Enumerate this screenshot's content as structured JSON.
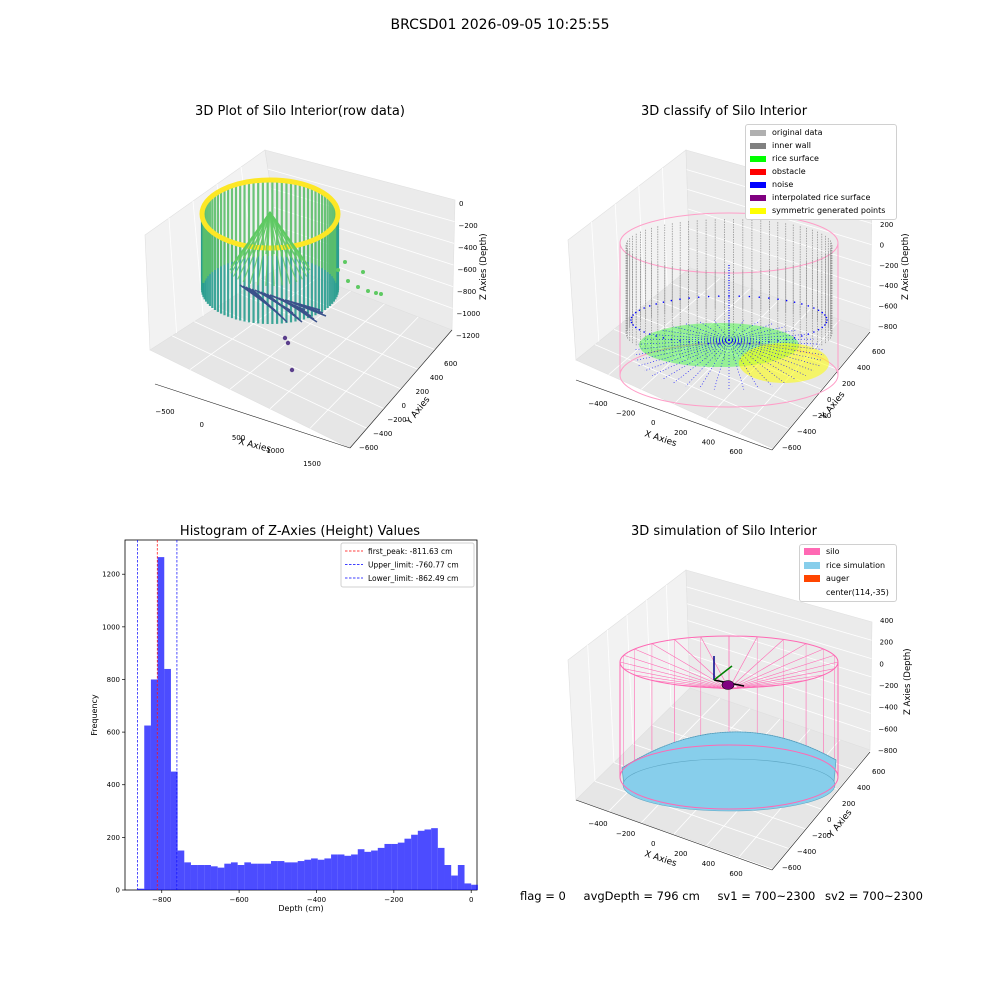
{
  "figure": {
    "suptitle": "BRCSD01 2026-09-05 10:25:55",
    "footer": {
      "flag": "flag = 0",
      "avg_depth": "avgDepth = 796 cm",
      "sv1": "sv1 = 700~2300",
      "sv2": "sv2 = 700~2300"
    }
  },
  "panel_raw": {
    "title": "3D Plot of Silo Interior(row data)",
    "xlabel": "X Axies",
    "ylabel": "Y Axies",
    "zlabel": "Z Axies (Depth)",
    "xticks": [
      "−500",
      "0",
      "500",
      "1000",
      "1500"
    ],
    "yticks": [
      "−600",
      "−400",
      "−200",
      "0",
      "200",
      "400",
      "600"
    ],
    "zticks": [
      "0",
      "−200",
      "−400",
      "−600",
      "−800",
      "−1000",
      "−1200"
    ],
    "colormap": [
      "#440154",
      "#3b528b",
      "#21918c",
      "#5ec962",
      "#fde725"
    ]
  },
  "panel_classify": {
    "title": "3D classify of Silo Interior",
    "xlabel": "X Axies",
    "ylabel": "Y Axies",
    "zlabel": "Z Axies (Depth)",
    "xticks": [
      "−400",
      "−200",
      "0",
      "200",
      "400",
      "600"
    ],
    "yticks": [
      "−600",
      "−400",
      "−200",
      "0",
      "200",
      "400",
      "600"
    ],
    "zticks": [
      "200",
      "0",
      "−200",
      "−400",
      "−600",
      "−800"
    ],
    "legend": [
      {
        "label": "original data",
        "color": "#b0b0b0"
      },
      {
        "label": "inner wall",
        "color": "#808080"
      },
      {
        "label": "rice surface",
        "color": "#00ff00"
      },
      {
        "label": "obstacle",
        "color": "#ff0000"
      },
      {
        "label": "noise",
        "color": "#0000ff"
      },
      {
        "label": "interpolated rice surface",
        "color": "#800080"
      },
      {
        "label": "symmetric generated points",
        "color": "#ffff00"
      }
    ]
  },
  "panel_sim": {
    "title": "3D simulation of Silo Interior",
    "xlabel": "X Axies",
    "ylabel": "Y Axies",
    "zlabel": "Z Axies (Depth)",
    "xticks": [
      "−400",
      "−200",
      "0",
      "200",
      "400",
      "600"
    ],
    "yticks": [
      "−600",
      "−400",
      "−200",
      "0",
      "200",
      "400",
      "600"
    ],
    "zticks": [
      "400",
      "200",
      "0",
      "−200",
      "−400",
      "−600",
      "−800"
    ],
    "legend": [
      {
        "label": "silo",
        "color": "#ff69b4"
      },
      {
        "label": "rice simulation",
        "color": "#87ceeb"
      },
      {
        "label": "auger",
        "color": "#ff4500"
      },
      {
        "label": "center(114,-35)",
        "color": ""
      }
    ]
  },
  "chart_data": {
    "type": "bar",
    "title": "Histogram of Z-Axies (Height) Values",
    "xlabel": "Depth (cm)",
    "ylabel": "Frequency",
    "xlim": [
      -895,
      15
    ],
    "ylim": [
      0,
      1330
    ],
    "xticks": [
      -800,
      -600,
      -400,
      -200,
      0
    ],
    "xtick_labels": [
      "−800",
      "−600",
      "−400",
      "−200",
      "0"
    ],
    "yticks": [
      0,
      200,
      400,
      600,
      800,
      1000,
      1200
    ],
    "bar_color": "#0000ff",
    "bar_opacity": 0.7,
    "bin_width": 17.25,
    "bin_start": -862.5,
    "values": [
      5,
      625,
      800,
      1265,
      840,
      450,
      150,
      105,
      95,
      95,
      95,
      90,
      85,
      100,
      105,
      95,
      105,
      100,
      100,
      100,
      110,
      110,
      105,
      105,
      110,
      115,
      120,
      115,
      120,
      135,
      135,
      130,
      135,
      155,
      145,
      150,
      160,
      175,
      175,
      180,
      195,
      210,
      225,
      230,
      235,
      160,
      95,
      55,
      95,
      25,
      20
    ],
    "lines": [
      {
        "value": -811.63,
        "color": "#ff0000",
        "label": "first_peak: -811.63 cm"
      },
      {
        "value": -760.77,
        "color": "#0000ff",
        "label": "Upper_limit: -760.77 cm"
      },
      {
        "value": -862.49,
        "color": "#0000ff",
        "label": "Lower_limit: -862.49 cm"
      }
    ]
  }
}
